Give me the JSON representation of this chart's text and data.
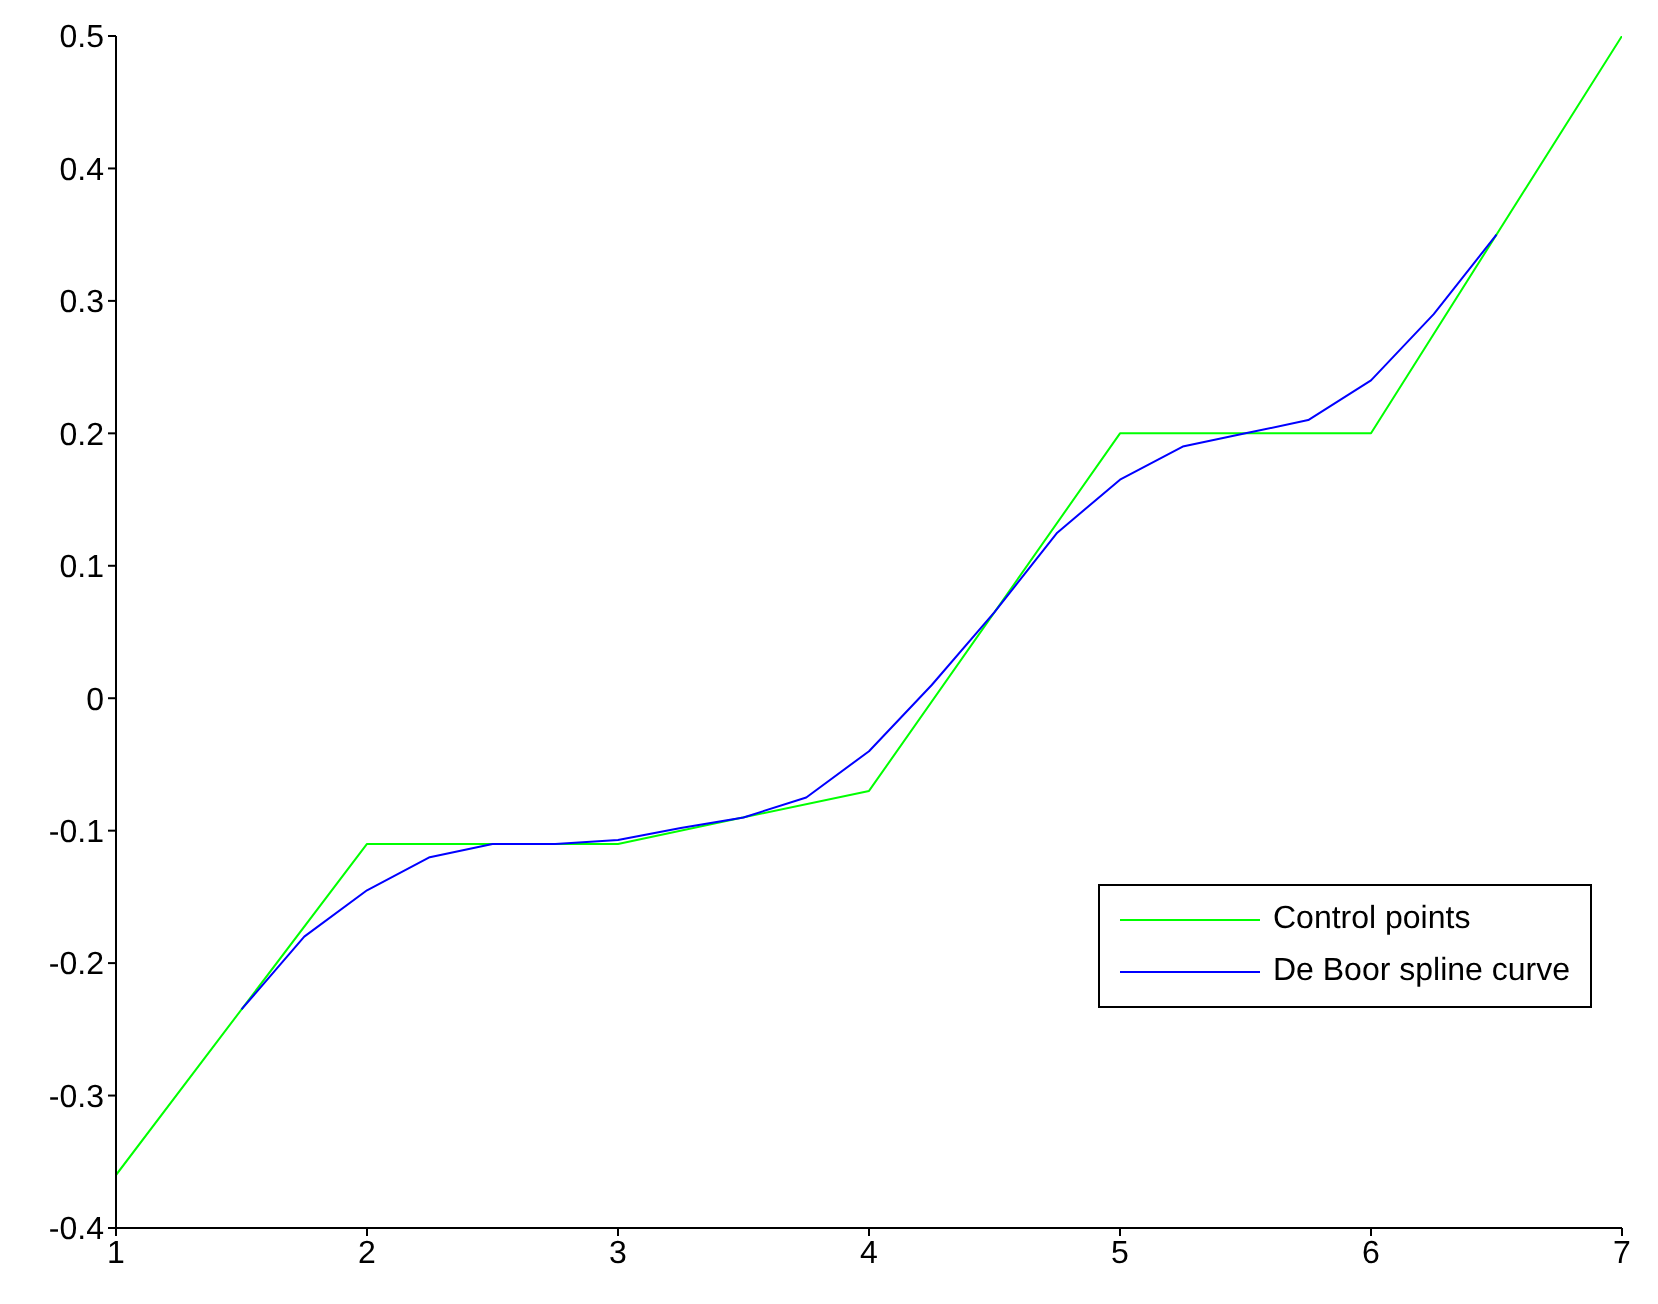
{
  "chart_data": {
    "type": "line",
    "xlim": [
      1,
      7
    ],
    "xticks": [
      1,
      2,
      3,
      4,
      5,
      6,
      7
    ],
    "ylim": [
      -0.4,
      0.5
    ],
    "yticks": [
      -0.4,
      -0.3,
      -0.2,
      -0.1,
      0,
      0.1,
      0.2,
      0.3,
      0.4,
      0.5
    ],
    "grid": false,
    "legend": "bottom right",
    "marker": "none",
    "line_style": "solid",
    "series": [
      {
        "name": "Control points",
        "color": "#00ff00",
        "x": [
          1,
          2,
          3,
          4,
          5,
          6,
          7
        ],
        "values": [
          -0.36,
          -0.11,
          -0.11,
          -0.07,
          0.2,
          0.2,
          0.5
        ]
      },
      {
        "name": "De Boor spline curve",
        "color": "#0000ff",
        "x": [
          1.5,
          1.75,
          2,
          2.25,
          2.5,
          2.75,
          3,
          3.25,
          3.5,
          3.75,
          4,
          4.25,
          4.5,
          4.75,
          5,
          5.25,
          5.5,
          5.75,
          6,
          6.25,
          6.5
        ],
        "values": [
          -0.235,
          -0.18,
          -0.145,
          -0.12,
          -0.11,
          -0.11,
          -0.107,
          -0.098,
          -0.09,
          -0.075,
          -0.04,
          0.01,
          0.065,
          0.125,
          0.165,
          0.19,
          0.2,
          0.21,
          0.24,
          0.29,
          0.35
        ]
      }
    ]
  }
}
